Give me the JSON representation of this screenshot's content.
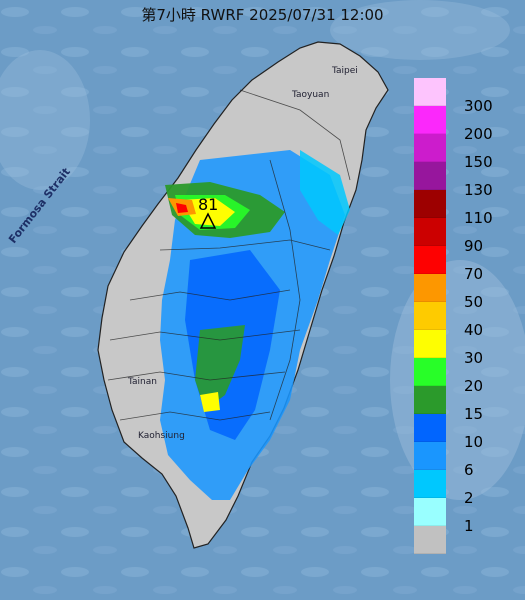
{
  "title": "第7小時  RWRF 2025/07/31 12:00",
  "map": {
    "sea_label": "Formosa Strait",
    "city_labels": [
      "Taipei",
      "Taoyuan",
      "Tainan",
      "Kaohsiung"
    ],
    "max_value_label": "81",
    "marker_icon": "triangle-marker-icon"
  },
  "legend": {
    "items": [
      {
        "label": "300",
        "color": "#fdc4fd"
      },
      {
        "label": "200",
        "color": "#fb28fb"
      },
      {
        "label": "150",
        "color": "#cc1ccc"
      },
      {
        "label": "130",
        "color": "#97169d"
      },
      {
        "label": "110",
        "color": "#9d0000"
      },
      {
        "label": "90",
        "color": "#cc0000"
      },
      {
        "label": "70",
        "color": "#fe0101"
      },
      {
        "label": "50",
        "color": "#fd9700"
      },
      {
        "label": "40",
        "color": "#fecb00"
      },
      {
        "label": "30",
        "color": "#fefe01"
      },
      {
        "label": "20",
        "color": "#28fe28"
      },
      {
        "label": "15",
        "color": "#2b9a2b"
      },
      {
        "label": "10",
        "color": "#0165fe"
      },
      {
        "label": "6",
        "color": "#1a96fe"
      },
      {
        "label": "2",
        "color": "#00c8fe"
      },
      {
        "label": "1",
        "color": "#99ffff"
      },
      {
        "label": "",
        "color": "#c1c1c1"
      }
    ]
  }
}
